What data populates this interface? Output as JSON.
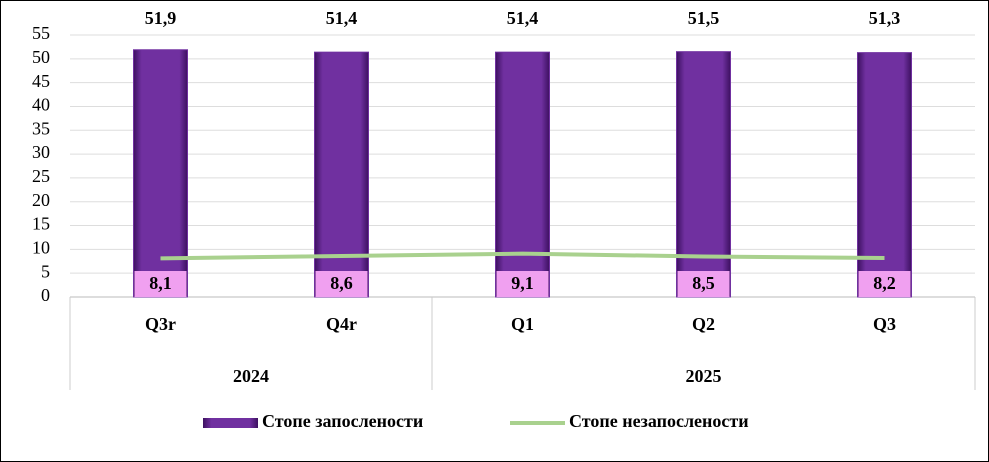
{
  "chart_data": {
    "type": "bar",
    "categories": [
      "Q3r",
      "Q4r",
      "Q1",
      "Q2",
      "Q3"
    ],
    "groups": [
      {
        "name": "2024",
        "span": 2
      },
      {
        "name": "2025",
        "span": 3
      }
    ],
    "series": [
      {
        "name": "Стопе запослености",
        "type": "bar",
        "color": "#7030a0",
        "values": [
          51.9,
          51.4,
          51.4,
          51.5,
          51.3
        ],
        "value_labels": [
          "51,9",
          "51,4",
          "51,4",
          "51,5",
          "51,3"
        ]
      },
      {
        "name": "Стопе незапослености",
        "type": "line",
        "color": "#a9d18e",
        "values": [
          8.1,
          8.6,
          9.1,
          8.5,
          8.2
        ],
        "value_labels": [
          "8,1",
          "8,6",
          "9,1",
          "8,5",
          "8,2"
        ]
      }
    ],
    "ylim": [
      0,
      55
    ],
    "yticks": [
      0,
      5,
      10,
      15,
      20,
      25,
      30,
      35,
      40,
      45,
      50,
      55
    ],
    "grid": true,
    "legend": "bottom"
  }
}
